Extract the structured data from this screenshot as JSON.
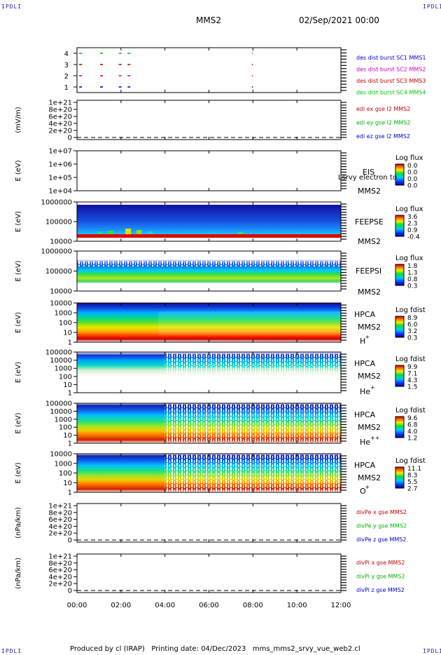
{
  "page": {
    "corner_label": "IPDLI",
    "spacecraft": "MMS2",
    "date": "02/Sep/2021 00:00",
    "footer": "Produced by cl (IRAP)   Printing date: 04/Dec/2023   mms_mms2_srvy_vue_web2.cl"
  },
  "chart_data": [
    {
      "type": "line",
      "panel": "burst",
      "ylim": [
        0.5,
        4.5
      ],
      "yticks": [
        "1",
        "2",
        "3",
        "4"
      ],
      "legend": [
        {
          "label": "des dist burst SC1 MMS1",
          "color": "#0000c8"
        },
        {
          "label": "des dist burst SC2 MMS2",
          "color": "#c800c8"
        },
        {
          "label": "des dist burst SC3 MMS3",
          "color": "#c80000"
        },
        {
          "label": "des dist burst SC4 MMS4",
          "color": "#00c800"
        }
      ],
      "series": [
        {
          "name": "des dist burst SC1 MMS1",
          "level": 1,
          "x_hours": [
            0.1,
            1.05,
            1.9,
            2.3,
            7.95
          ]
        },
        {
          "name": "des dist burst SC2 MMS2",
          "level": 2,
          "x_hours": [
            0.1,
            1.05,
            1.9,
            2.3,
            7.95
          ]
        },
        {
          "name": "des dist burst SC3 MMS3",
          "level": 3,
          "x_hours": [
            0.1,
            1.05,
            1.9,
            2.3,
            7.95
          ]
        },
        {
          "name": "des dist burst SC4 MMS4",
          "level": 4,
          "x_hours": [
            0.1,
            1.05,
            1.9,
            2.3,
            7.95
          ]
        }
      ]
    },
    {
      "type": "line",
      "panel": "edi",
      "ylabel": "(mV/m)",
      "yticks": [
        "0",
        "2e+20",
        "4e+20",
        "6e+20",
        "8e+20",
        "1e+21"
      ],
      "legend": [
        {
          "label": "edi ex gse l2 MMS2",
          "color": "#c80000"
        },
        {
          "label": "edi ey gse l2 MMS2",
          "color": "#00b400"
        },
        {
          "label": "edi ez gse l2 MMS2",
          "color": "#0000c8"
        }
      ]
    },
    {
      "type": "heatmap",
      "panel": "eis",
      "ylabel": "E (eV)",
      "yticks": [
        "1e+04",
        "1e+05",
        "1e+06",
        "1e+07"
      ],
      "instrument": "EIS",
      "spacecraft": "MMS2",
      "note": "Lsrvy electron to",
      "cbar_title": "Log flux",
      "cbar_ticks": [
        "0.0",
        "0.0",
        "0.0",
        "0.0"
      ]
    },
    {
      "type": "heatmap",
      "panel": "feepse",
      "ylabel": "E (eV)",
      "yticks": [
        "10000",
        "100000",
        "1000000"
      ],
      "instrument": "FEEPSE",
      "spacecraft": "MMS2",
      "cbar_title": "Log flux",
      "cbar_ticks": [
        "3.6",
        "2.3",
        "0.9",
        "-0.4"
      ]
    },
    {
      "type": "heatmap",
      "panel": "feepsi",
      "ylabel": "E (eV)",
      "yticks": [
        "10000",
        "100000",
        "1000000"
      ],
      "instrument": "FEEPSI",
      "spacecraft": "MMS2",
      "cbar_title": "Log flux",
      "cbar_ticks": [
        "1.8",
        "1.3",
        "0.8",
        "0.3"
      ]
    },
    {
      "type": "heatmap",
      "panel": "hpca_h",
      "ylabel": "E (eV)",
      "yticks": [
        "1",
        "10",
        "100",
        "1000",
        "10000"
      ],
      "instrument": "HPCA",
      "spacecraft": "MMS2",
      "species": "H",
      "charge": "+",
      "cbar_title": "Log fdist",
      "cbar_ticks": [
        "8.9",
        "6.0",
        "3.2",
        "0.3"
      ]
    },
    {
      "type": "heatmap",
      "panel": "hpca_he1",
      "ylabel": "E (eV)",
      "yticks": [
        "1",
        "10",
        "100",
        "1000",
        "10000",
        "100000"
      ],
      "instrument": "HPCA",
      "spacecraft": "MMS2",
      "species": "He",
      "charge": "+",
      "cbar_title": "Log fdist",
      "cbar_ticks": [
        "9.9",
        "7.1",
        "4.3",
        "1.5"
      ]
    },
    {
      "type": "heatmap",
      "panel": "hpca_he2",
      "ylabel": "E (eV)",
      "yticks": [
        "1",
        "10",
        "100",
        "1000",
        "10000",
        "100000"
      ],
      "instrument": "HPCA",
      "spacecraft": "MMS2",
      "species": "He",
      "charge": "++",
      "cbar_title": "Log fdist",
      "cbar_ticks": [
        "9.6",
        "6.8",
        "4.0",
        "1.2"
      ]
    },
    {
      "type": "heatmap",
      "panel": "hpca_o",
      "ylabel": "E (eV)",
      "yticks": [
        "1",
        "10",
        "100",
        "1000",
        "10000"
      ],
      "instrument": "HPCA",
      "spacecraft": "MMS2",
      "species": "O",
      "charge": "+",
      "cbar_title": "Log fdist",
      "cbar_ticks": [
        "11.1",
        "8.3",
        "5.5",
        "2.7"
      ]
    },
    {
      "type": "line",
      "panel": "divpe",
      "ylabel": "(nPa/km)",
      "yticks": [
        "0",
        "2e+20",
        "4e+20",
        "6e+20",
        "8e+20",
        "1e+21"
      ],
      "legend": [
        {
          "label": "divPe x gse MMS2",
          "color": "#c80000"
        },
        {
          "label": "divPe y gse MMS2",
          "color": "#00b400"
        },
        {
          "label": "divPe z gse MMS2",
          "color": "#0000c8"
        }
      ]
    },
    {
      "type": "line",
      "panel": "divpi",
      "ylabel": "(nPa/km)",
      "yticks": [
        "0",
        "2e+20",
        "4e+20",
        "6e+20",
        "8e+20",
        "1e+21"
      ],
      "legend": [
        {
          "label": "divPi x gse MMS2",
          "color": "#c80000"
        },
        {
          "label": "divPi y gse MMS2",
          "color": "#00b400"
        },
        {
          "label": "divPi z gse MMS2",
          "color": "#0000c8"
        }
      ]
    }
  ],
  "time_axis": {
    "xlim_hours": [
      0,
      12
    ],
    "ticks": [
      "00:00",
      "02:00",
      "04:00",
      "06:00",
      "08:00",
      "10:00",
      "12:00"
    ]
  }
}
